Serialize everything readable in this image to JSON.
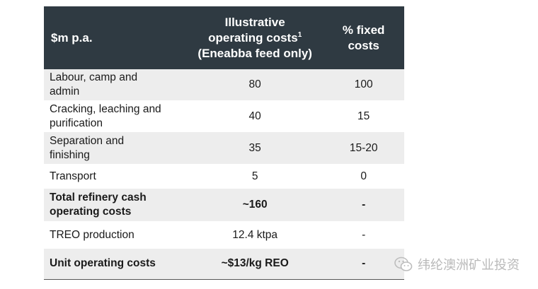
{
  "table": {
    "headers": {
      "col1": "$m p.a.",
      "col2_line1": "Illustrative",
      "col2_line2": "operating costs",
      "col2_sup": "1",
      "col2_line3": "(Eneabba feed only)",
      "col3_line1": "% fixed",
      "col3_line2": "costs"
    },
    "rows": [
      {
        "label_line1": "Labour, camp and",
        "label_line2": "admin",
        "cost": "80",
        "fixed": "100"
      },
      {
        "label_line1": "Cracking, leaching and",
        "label_line2": "purification",
        "cost": "40",
        "fixed": "15"
      },
      {
        "label_line1": "Separation and",
        "label_line2": "finishing",
        "cost": "35",
        "fixed": "15-20"
      },
      {
        "label": "Transport",
        "cost": "5",
        "fixed": "0"
      },
      {
        "label_line1": "Total refinery cash",
        "label_line2": "operating costs",
        "cost": "~160",
        "fixed": "-"
      },
      {
        "label": "TREO production",
        "cost": "12.4 ktpa",
        "fixed": "-"
      },
      {
        "label": "Unit operating costs",
        "cost": "~$13/kg REO",
        "fixed": "-"
      }
    ]
  },
  "watermark": {
    "icon": "wechat-icon",
    "text": "纬纶澳洲矿业投资"
  }
}
